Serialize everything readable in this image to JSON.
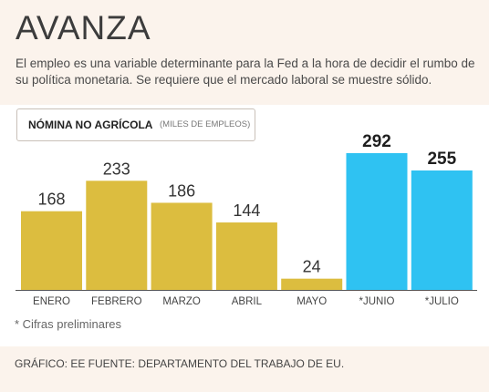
{
  "header": {
    "title": "AVANZA",
    "subtitle": "El empleo es una variable determinante para la Fed a la hora de decidir el rumbo de su política monetaria. Se requiere que el mercado laboral se muestre sólido."
  },
  "chart_label": {
    "main": "NÓMINA NO AGRÍCOLA",
    "unit": "(MILES DE EMPLEOS)"
  },
  "chart_data": {
    "type": "bar",
    "title": "NÓMINA NO AGRÍCOLA",
    "ylabel": "(MILES DE EMPLEOS)",
    "categories": [
      "ENERO",
      "FEBRERO",
      "MARZO",
      "ABRIL",
      "MAYO",
      "*JUNIO",
      "*JULIO"
    ],
    "values": [
      168,
      233,
      186,
      144,
      24,
      292,
      255
    ],
    "preliminary": [
      false,
      false,
      false,
      false,
      false,
      true,
      true
    ],
    "ylim": [
      0,
      300
    ],
    "colors": {
      "final": "#dcbd3f",
      "preliminary": "#2fc2f2"
    },
    "grid": false
  },
  "footnote": "* Cifras preliminares",
  "source": "GRÁFICO: EE FUENTE: DEPARTAMENTO DEL TRABAJO DE EU."
}
